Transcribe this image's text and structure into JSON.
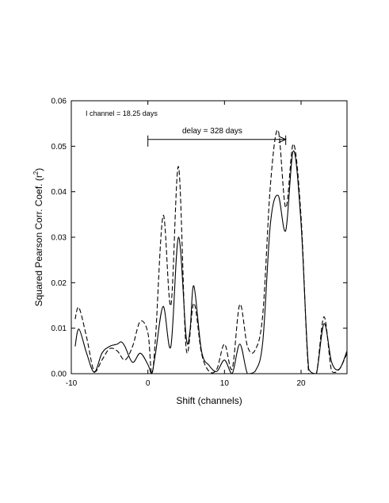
{
  "chart_data": {
    "type": "line",
    "title": "",
    "xlabel": "Shift (channels)",
    "ylabel_main": "Squared Pearson Corr. Coef. (r",
    "ylabel_sup": "2",
    "ylabel_tail": ")",
    "xlim": [
      -10,
      26
    ],
    "ylim": [
      0,
      0.06
    ],
    "x_ticks": [
      -10,
      0,
      10,
      20
    ],
    "x_tick_labels": [
      "-10",
      "0",
      "10",
      "20"
    ],
    "y_ticks": [
      0,
      0.01,
      0.02,
      0.03,
      0.04,
      0.05,
      0.06
    ],
    "y_tick_labels": [
      "0.00",
      "0.01",
      "0.02",
      "0.03",
      "0.04",
      "0.05",
      "0.06"
    ],
    "grid": false,
    "annotations": {
      "channel_note": "I channel = 18.25 days",
      "delay_label": "delay = 328 days",
      "delay_arrow_from": 0,
      "delay_arrow_to": 18,
      "delay_arrow_y": 0.0515
    },
    "series": [
      {
        "style": "solid",
        "x": [
          -9.5,
          -9,
          -8,
          -7,
          -6,
          -5,
          -4,
          -3.5,
          -3,
          -2,
          -1,
          0,
          0.5,
          1,
          2,
          3,
          4,
          5,
          5.5,
          6,
          7,
          8,
          9,
          10,
          11,
          12,
          13,
          14,
          15,
          16,
          17,
          18,
          19,
          20,
          21,
          22,
          23,
          24,
          25,
          26
        ],
        "y": [
          0.006,
          0.0098,
          0.0045,
          0.0003,
          0.0045,
          0.006,
          0.0065,
          0.007,
          0.006,
          0.0025,
          0.0045,
          0.002,
          0.0,
          0.0045,
          0.0148,
          0.006,
          0.03,
          0.008,
          0.0095,
          0.0193,
          0.005,
          0.0018,
          0.0005,
          0.003,
          0.0,
          0.0065,
          0.0,
          0.0005,
          0.007,
          0.033,
          0.0392,
          0.0315,
          0.049,
          0.033,
          0.001,
          0.0,
          0.011,
          0.0025,
          0.001,
          0.005
        ]
      },
      {
        "style": "dashed",
        "x": [
          -9.5,
          -9,
          -8,
          -7,
          -6,
          -5,
          -4,
          -3,
          -2,
          -1,
          0,
          0.5,
          1,
          2,
          3,
          4,
          5,
          6,
          7,
          8,
          9,
          10,
          11,
          12,
          13,
          14,
          15,
          16,
          17,
          18,
          19,
          20,
          21,
          22,
          23,
          24,
          25,
          26
        ],
        "y": [
          0.012,
          0.0145,
          0.008,
          0.0005,
          0.003,
          0.0055,
          0.005,
          0.003,
          0.006,
          0.0115,
          0.009,
          0.0,
          0.008,
          0.0348,
          0.015,
          0.0455,
          0.0055,
          0.0155,
          0.0045,
          0.0005,
          0.001,
          0.0065,
          0.001,
          0.0152,
          0.006,
          0.0052,
          0.013,
          0.0415,
          0.0535,
          0.0365,
          0.0505,
          0.0345,
          0.0,
          0.0,
          0.0125,
          0.0005,
          0.001,
          0.0045
        ]
      }
    ]
  }
}
